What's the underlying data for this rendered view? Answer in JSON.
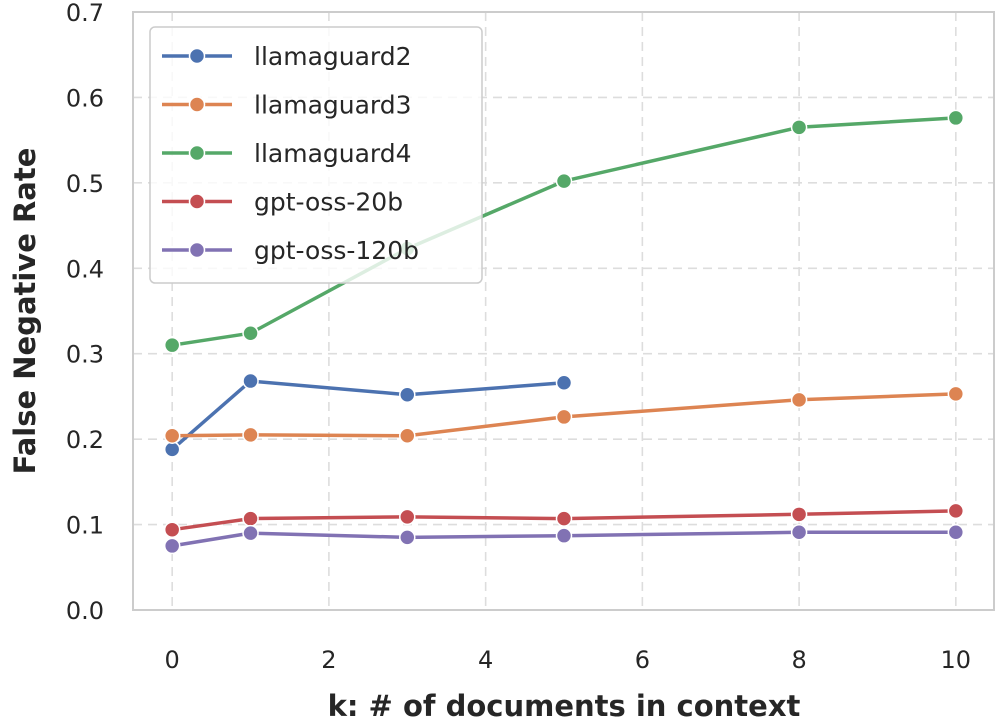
{
  "chart_data": {
    "type": "line",
    "xlabel": "k: # of documents in context",
    "ylabel": "False Negative Rate",
    "xlim": [
      -0.5,
      10.5
    ],
    "ylim": [
      0.0,
      0.7
    ],
    "xticks": [
      0,
      2,
      4,
      6,
      8,
      10
    ],
    "yticks": [
      0.0,
      0.1,
      0.2,
      0.3,
      0.4,
      0.5,
      0.6,
      0.7
    ],
    "xtick_labels": [
      "0",
      "2",
      "4",
      "6",
      "8",
      "10"
    ],
    "ytick_labels": [
      "0.0",
      "0.1",
      "0.2",
      "0.3",
      "0.4",
      "0.5",
      "0.6",
      "0.7"
    ],
    "grid": true,
    "legend_position": "top-left",
    "series": [
      {
        "name": "llamaguard2",
        "color": "#4c72b0",
        "x": [
          0,
          1,
          3,
          5
        ],
        "y": [
          0.188,
          0.268,
          0.252,
          0.266
        ]
      },
      {
        "name": "llamaguard3",
        "color": "#dd8452",
        "x": [
          0,
          1,
          3,
          5,
          8,
          10
        ],
        "y": [
          0.204,
          0.205,
          0.204,
          0.226,
          0.246,
          0.253
        ]
      },
      {
        "name": "llamaguard4",
        "color": "#55a868",
        "x": [
          0,
          1,
          3,
          5,
          8,
          10
        ],
        "y": [
          0.31,
          0.324,
          0.423,
          0.502,
          0.565,
          0.576
        ]
      },
      {
        "name": "gpt-oss-20b",
        "color": "#c44e52",
        "x": [
          0,
          1,
          3,
          5,
          8,
          10
        ],
        "y": [
          0.094,
          0.107,
          0.109,
          0.107,
          0.112,
          0.116
        ]
      },
      {
        "name": "gpt-oss-120b",
        "color": "#8172b3",
        "x": [
          0,
          1,
          3,
          5,
          8,
          10
        ],
        "y": [
          0.075,
          0.09,
          0.085,
          0.087,
          0.091,
          0.091
        ]
      }
    ]
  }
}
